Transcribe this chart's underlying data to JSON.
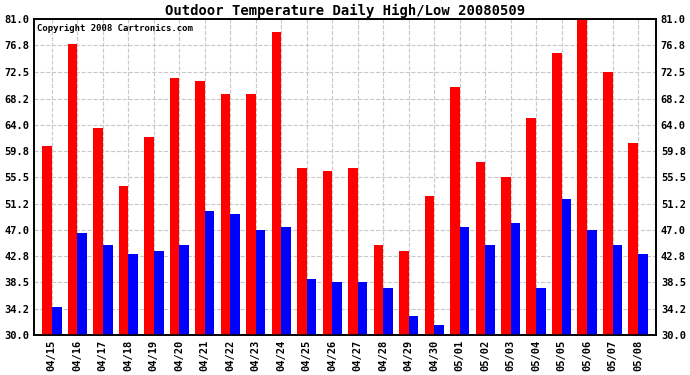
{
  "title": "Outdoor Temperature Daily High/Low 20080509",
  "copyright": "Copyright 2008 Cartronics.com",
  "dates": [
    "04/15",
    "04/16",
    "04/17",
    "04/18",
    "04/19",
    "04/20",
    "04/21",
    "04/22",
    "04/23",
    "04/24",
    "04/25",
    "04/26",
    "04/27",
    "04/28",
    "04/29",
    "04/30",
    "05/01",
    "05/02",
    "05/03",
    "05/04",
    "05/05",
    "05/06",
    "05/07",
    "05/08"
  ],
  "highs": [
    60.5,
    77.0,
    63.5,
    54.0,
    62.0,
    71.5,
    71.0,
    69.0,
    69.0,
    79.0,
    57.0,
    56.5,
    57.0,
    44.5,
    43.5,
    52.5,
    70.0,
    58.0,
    55.5,
    65.0,
    75.5,
    81.0,
    72.5,
    61.0
  ],
  "lows": [
    34.5,
    46.5,
    44.5,
    43.0,
    43.5,
    44.5,
    50.0,
    49.5,
    47.0,
    47.5,
    39.0,
    38.5,
    38.5,
    37.5,
    33.0,
    31.5,
    47.5,
    44.5,
    48.0,
    37.5,
    52.0,
    47.0,
    44.5,
    43.0
  ],
  "high_color": "#ff0000",
  "low_color": "#0000ff",
  "bg_color": "#ffffff",
  "grid_color": "#c8c8c8",
  "ymin": 30.0,
  "ymax": 81.0,
  "yticks": [
    30.0,
    34.2,
    38.5,
    42.8,
    47.0,
    51.2,
    55.5,
    59.8,
    64.0,
    68.2,
    72.5,
    76.8,
    81.0
  ],
  "bar_width": 0.38,
  "title_fontsize": 10,
  "tick_fontsize": 7.5,
  "copyright_fontsize": 6.5
}
